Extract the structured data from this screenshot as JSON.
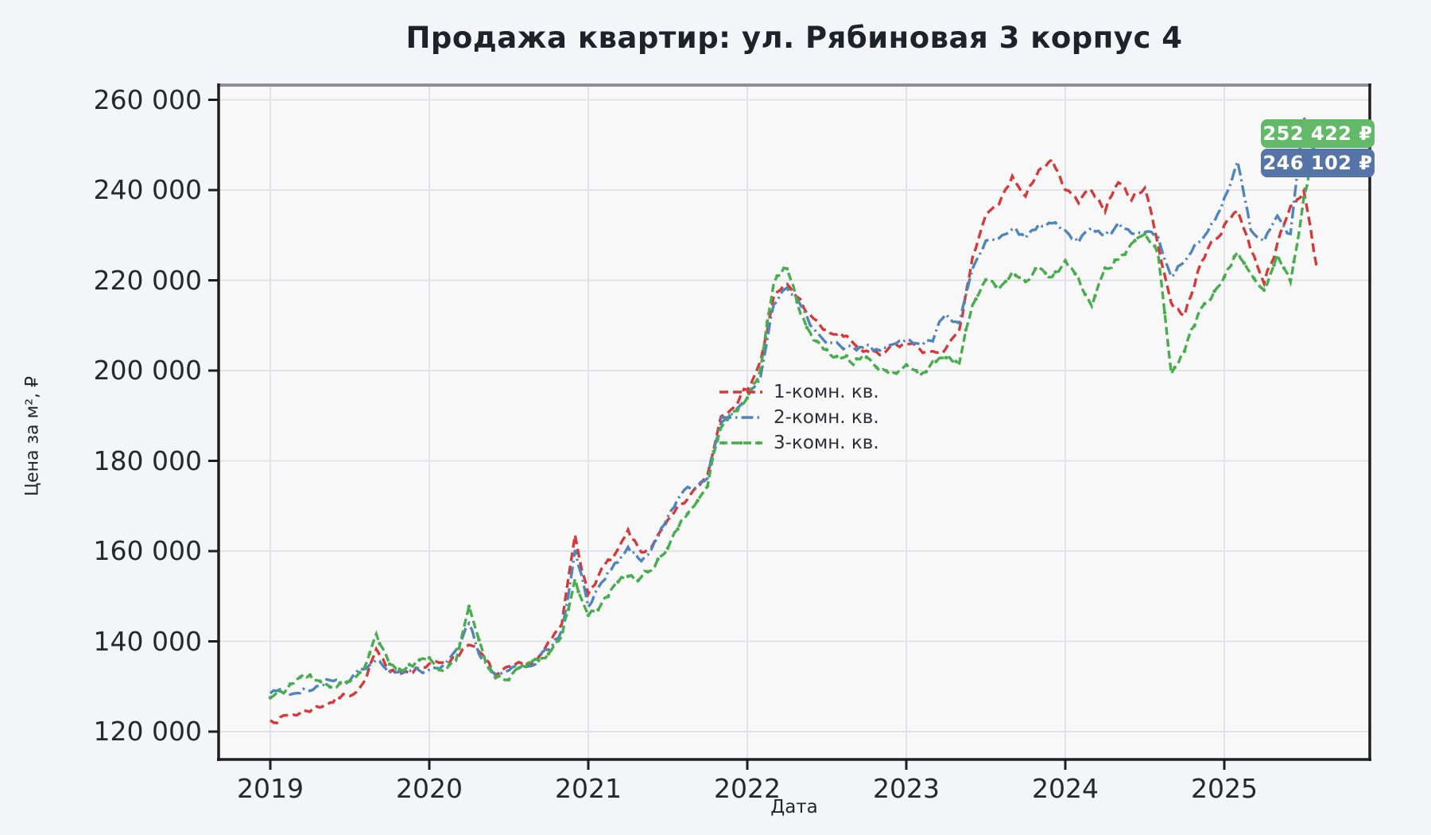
{
  "title": "Продажа квартир: ул. Рябиновая 3 корпус 4",
  "x_axis": {
    "label": "Дата",
    "ticks": [
      "2019",
      "2020",
      "2021",
      "2022",
      "2023",
      "2024",
      "2025"
    ]
  },
  "y_axis": {
    "label": "Цена за м², ₽",
    "ticks": [
      {
        "label": "120 000",
        "v": 120000
      },
      {
        "label": "140 000",
        "v": 140000
      },
      {
        "label": "160 000",
        "v": 160000
      },
      {
        "label": "180 000",
        "v": 180000
      },
      {
        "label": "200 000",
        "v": 200000
      },
      {
        "label": "220 000",
        "v": 220000
      },
      {
        "label": "240 000",
        "v": 240000
      },
      {
        "label": "260 000",
        "v": 260000
      }
    ]
  },
  "annotations": [
    {
      "text": "252 422 ₽",
      "bg": "#64b969",
      "series": "3-комн. кв."
    },
    {
      "text": "246 102 ₽",
      "bg": "#5574a8",
      "series": "2-комн. кв."
    }
  ],
  "colors": {
    "figure_bg": "#f3f5f9",
    "plot_bg": "#f8f8f9",
    "grid": "#e2e3e7",
    "spine_dark": "#1f1f1f",
    "spine_top": "#8f8f8f",
    "text": "#24262b"
  },
  "chart_data": {
    "type": "line",
    "title": "Продажа квартир: ул. Рябиновая 3 корпус 4",
    "xlabel": "Дата",
    "ylabel": "Цена за м², ₽",
    "x_start": "2019-01",
    "x_step": "month",
    "x_range_years": [
      2019,
      2025.6
    ],
    "ylim": [
      113800,
      263300
    ],
    "grid": true,
    "legend_position": "center",
    "series": [
      {
        "name": "1-комн. кв.",
        "color": "#d53a3a",
        "dash": "dashed",
        "final_value": 222500,
        "values": [
          122500,
          123200,
          124000,
          125000,
          126000,
          127200,
          128500,
          130500,
          138000,
          132500,
          133500,
          134200,
          134500,
          135500,
          136500,
          140000,
          136500,
          132500,
          133500,
          134500,
          135500,
          139000,
          143500,
          164000,
          150000,
          156000,
          158500,
          164000,
          159500,
          162000,
          166000,
          170000,
          173000,
          177000,
          190000,
          193000,
          196000,
          202000,
          216000,
          219000,
          215500,
          211000,
          208500,
          208000,
          206000,
          204000,
          203000,
          205000,
          206000,
          205000,
          203500,
          205000,
          208000,
          225000,
          234000,
          237000,
          243000,
          238000,
          245000,
          246000,
          240000,
          237000,
          240000,
          236000,
          242000,
          238000,
          241000,
          228000,
          215000,
          212000,
          222000,
          228000,
          232000,
          236000,
          227000,
          220000,
          228000,
          236000,
          240000,
          222500
        ]
      },
      {
        "name": "2-комн. кв.",
        "color": "#4f85ba",
        "dash": "dashdot",
        "final_value": 246102,
        "values": [
          128500,
          129500,
          128000,
          129500,
          131000,
          132000,
          131000,
          133500,
          136500,
          134000,
          132500,
          133500,
          134000,
          135000,
          137000,
          144000,
          136000,
          132000,
          133000,
          134500,
          135500,
          138000,
          142000,
          160000,
          148000,
          153000,
          157000,
          161000,
          158000,
          162000,
          168000,
          173000,
          174000,
          177000,
          189000,
          190000,
          194000,
          199000,
          215000,
          219000,
          214000,
          209000,
          206000,
          205000,
          204500,
          206000,
          204000,
          205500,
          206500,
          205000,
          207000,
          213000,
          210000,
          222000,
          228000,
          230000,
          232000,
          229000,
          232000,
          233000,
          231000,
          229000,
          232000,
          229500,
          232000,
          230000,
          231000,
          229000,
          221000,
          225000,
          228000,
          232000,
          238000,
          247000,
          232000,
          228000,
          234000,
          230000,
          256000,
          246102
        ]
      },
      {
        "name": "3-комн. кв.",
        "color": "#48ad4d",
        "dash": "dashed-marker",
        "final_value": 252422,
        "values": [
          127500,
          129000,
          131500,
          132000,
          130000,
          130500,
          131000,
          133000,
          141000,
          134500,
          134000,
          135000,
          135500,
          134000,
          136000,
          147000,
          137000,
          131000,
          132500,
          134000,
          135000,
          137500,
          141000,
          154000,
          145000,
          148000,
          152000,
          155000,
          154000,
          157000,
          161000,
          166000,
          170000,
          175000,
          188000,
          191000,
          194000,
          200000,
          220000,
          223000,
          213000,
          207000,
          204000,
          203000,
          202000,
          203500,
          200000,
          199500,
          201000,
          199000,
          201500,
          203000,
          202000,
          215000,
          220000,
          218000,
          222000,
          220000,
          223000,
          221000,
          224000,
          220000,
          214000,
          222000,
          225000,
          228000,
          230000,
          226000,
          198500,
          205000,
          212000,
          216000,
          220000,
          226000,
          222000,
          218000,
          225000,
          219000,
          238000,
          252422
        ]
      }
    ]
  }
}
